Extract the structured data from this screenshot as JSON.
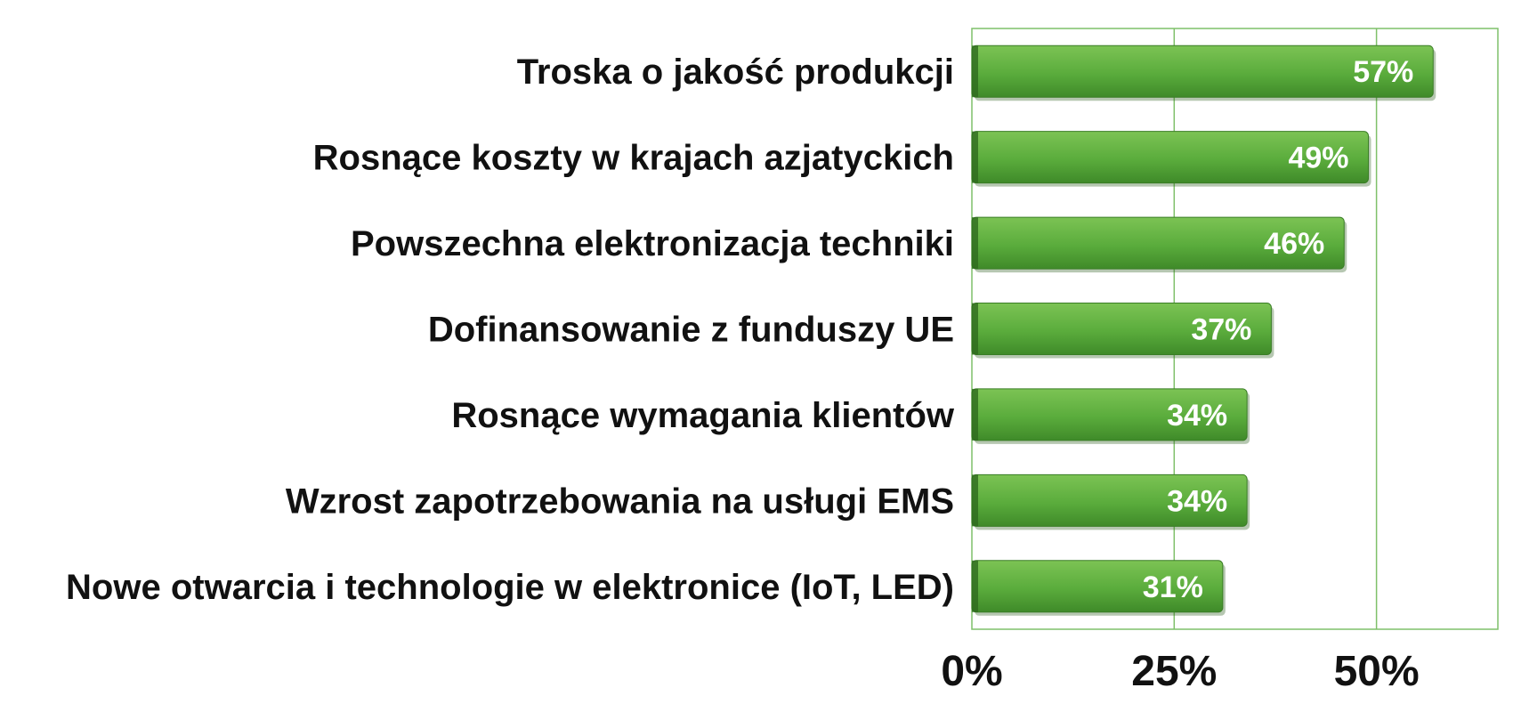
{
  "chart_data": {
    "type": "bar",
    "orientation": "horizontal",
    "title": "",
    "xlabel": "",
    "ylabel": "",
    "categories": [
      "Troska o jakość produkcji",
      "Rosnące koszty w krajach azjatyckich",
      "Powszechna elektronizacja techniki",
      "Dofinansowanie z funduszy UE",
      "Rosnące wymagania klientów",
      "Wzrost zapotrzebowania na usługi EMS",
      "Nowe otwarcia i technologie w elektronice (IoT, LED)"
    ],
    "values": [
      57,
      49,
      46,
      37,
      34,
      34,
      31
    ],
    "value_labels": [
      "57%",
      "49%",
      "46%",
      "37%",
      "34%",
      "34%",
      "31%"
    ],
    "xlim": [
      0,
      65
    ],
    "x_ticks": [
      0,
      25,
      50
    ],
    "x_tick_labels": [
      "0%",
      "25%",
      "50%"
    ],
    "grid": "vertical",
    "legend": "none",
    "colors": {
      "bar": "#5aac3c",
      "bar_light": "#7cc354",
      "bar_dark": "#3f8a29",
      "grid": "#7fc06a"
    }
  }
}
